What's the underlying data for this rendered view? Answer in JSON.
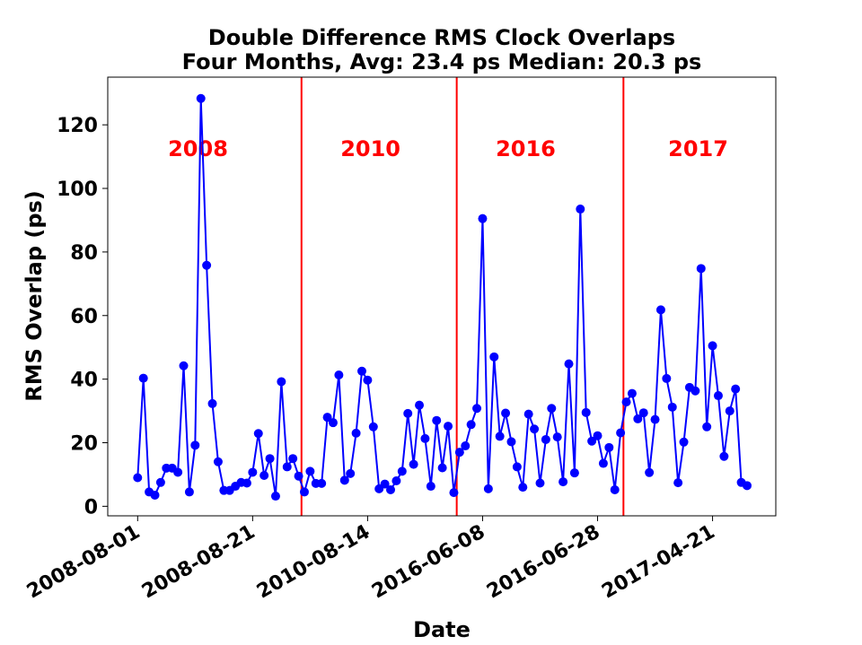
{
  "chart_data": {
    "type": "line",
    "title": "Double Difference RMS Clock Overlaps",
    "subtitle": "Four Months, Avg: 23.4 ps Median: 20.3 ps",
    "xlabel": "Date",
    "ylabel": "RMS Overlap (ps)",
    "ylim": [
      -3,
      135
    ],
    "y_ticks": [
      0,
      20,
      40,
      60,
      80,
      100,
      120
    ],
    "x_ticks": [
      {
        "index": 0,
        "label": "2008-08-01"
      },
      {
        "index": 20,
        "label": "2008-08-21"
      },
      {
        "index": 40,
        "label": "2010-08-14"
      },
      {
        "index": 60,
        "label": "2016-06-08"
      },
      {
        "index": 80,
        "label": "2016-06-28"
      },
      {
        "index": 100,
        "label": "2017-04-21"
      }
    ],
    "xlim_index": [
      -5.2,
      111
    ],
    "grid": false,
    "line_color": "#0000ff",
    "separator_color": "#ff0000",
    "separators_at_index": [
      28.5,
      55.5,
      84.5
    ],
    "period_labels": [
      {
        "text": "2008",
        "center_index": 10.5
      },
      {
        "text": "2010",
        "center_index": 40.5
      },
      {
        "text": "2016",
        "center_index": 67.5
      },
      {
        "text": "2017",
        "center_index": 97.5
      }
    ],
    "series": [
      {
        "values": [
          9,
          40.3,
          4.5,
          3.5,
          7.5,
          12,
          12,
          10.7,
          44.2,
          4.5,
          19.2,
          128.3,
          75.8,
          32.3,
          14,
          5,
          5,
          6.3,
          7.5,
          7.3,
          10.7,
          22.9,
          9.7,
          15,
          3.2,
          39.2,
          12.4,
          15,
          9.5,
          4.5,
          11,
          7.2,
          7.2,
          28,
          26.3,
          41.3,
          8.2,
          10.3,
          23,
          42.5,
          39.7,
          25,
          5.5,
          7,
          5.2,
          8,
          11,
          29.2,
          13.2,
          31.8,
          21.3,
          6.3,
          27,
          12.1,
          25.2,
          4.3,
          17,
          19,
          25.7,
          30.8,
          90.5,
          5.5,
          47,
          22,
          29.3,
          20.3,
          12.4,
          6,
          29,
          24.3,
          7.3,
          21,
          30.8,
          21.8,
          7.7,
          44.8,
          10.5,
          93.5,
          29.5,
          20.5,
          22.2,
          13.5,
          18.5,
          5.2,
          23.1,
          32.8,
          35.5,
          27.5,
          29.4,
          10.6,
          27.3,
          61.8,
          40.2,
          31.2,
          7.4,
          20.2,
          37.4,
          36.3,
          74.8,
          25,
          50.5,
          34.8,
          15.7,
          30,
          36.9,
          7.5,
          6.5
        ]
      }
    ]
  }
}
